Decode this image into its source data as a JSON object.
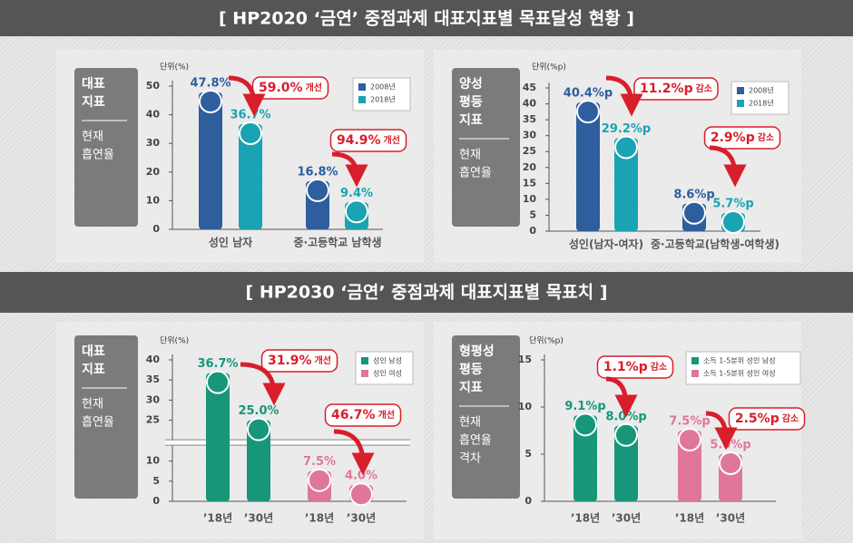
{
  "banners": [
    "[ HP2020 ‘금연’ 중점과제 대표지표별 목표달성 현황 ]",
    "[ HP2030 ‘금연’ 중점과제 대표지표별 목표치 ]"
  ],
  "chart_data": [
    {
      "type": "person-bar",
      "side_title": [
        "대표",
        "지표"
      ],
      "side_label": [
        "현재",
        "흡연율"
      ],
      "unit": "단위(%)",
      "categories": [
        "성인 남자",
        "중·고등학교 남학생"
      ],
      "series": [
        {
          "name": "2008년",
          "color": "#2e5e9e",
          "values": [
            47.8,
            16.8
          ],
          "value_labels": [
            "47.8%",
            "16.8%"
          ]
        },
        {
          "name": "2018년",
          "color": "#1aa3b2",
          "values": [
            36.7,
            9.4
          ],
          "value_labels": [
            "36.7%",
            "9.4%"
          ]
        }
      ],
      "ylim": [
        0,
        50
      ],
      "yticks": [
        0,
        10,
        20,
        30,
        40,
        50
      ],
      "annotations": [
        {
          "text": "59.0%",
          "note": "개선"
        },
        {
          "text": "94.9%",
          "note": "개선"
        }
      ]
    },
    {
      "type": "person-bar",
      "side_title": [
        "양성",
        "평등",
        "지표"
      ],
      "side_label": [
        "현재",
        "흡연율"
      ],
      "unit": "단위(%p)",
      "categories": [
        "성인(남자-여자)",
        "중·고등학교(남학생-여학생)"
      ],
      "series": [
        {
          "name": "2008년",
          "color": "#2e5e9e",
          "values": [
            40.4,
            8.6
          ],
          "value_labels": [
            "40.4%p",
            "8.6%p"
          ]
        },
        {
          "name": "2018년",
          "color": "#1aa3b2",
          "values": [
            29.2,
            5.7
          ],
          "value_labels": [
            "29.2%p",
            "5.7%p"
          ]
        }
      ],
      "ylim": [
        0,
        45
      ],
      "yticks": [
        0,
        5,
        10,
        15,
        20,
        25,
        30,
        35,
        40,
        45
      ],
      "annotations": [
        {
          "text": "11.2%p",
          "note": "감소"
        },
        {
          "text": "2.9%p",
          "note": "감소"
        }
      ]
    },
    {
      "type": "person-bar",
      "side_title": [
        "대표",
        "지표"
      ],
      "side_label": [
        "현재",
        "흡연율"
      ],
      "unit": "단위(%)",
      "categories": [
        "’18년",
        "’30년",
        "’18년",
        "’30년"
      ],
      "series": [
        {
          "name": "성인 남성",
          "color": "#17967a",
          "values": [
            36.7,
            25.0,
            null,
            null
          ],
          "value_labels": [
            "36.7%",
            "25.0%",
            null,
            null
          ]
        },
        {
          "name": "성인 여성",
          "color": "#e0779b",
          "values": [
            null,
            null,
            7.5,
            4.0
          ],
          "value_labels": [
            null,
            null,
            "7.5%",
            "4.0%"
          ]
        }
      ],
      "ylim": [
        0,
        40
      ],
      "ybreak": [
        10,
        25
      ],
      "yticks": [
        0,
        5,
        10,
        25,
        30,
        35,
        40
      ],
      "annotations": [
        {
          "text": "31.9%",
          "note": "개선"
        },
        {
          "text": "46.7%",
          "note": "개선"
        }
      ]
    },
    {
      "type": "person-bar",
      "side_title": [
        "형평성",
        "평등",
        "지표"
      ],
      "side_label": [
        "현재",
        "흡연율",
        "격차"
      ],
      "unit": "단위(%p)",
      "categories": [
        "’18년",
        "’30년",
        "’18년",
        "’30년"
      ],
      "series": [
        {
          "name": "소득 1-5분위 성인 남성",
          "color": "#17967a",
          "values": [
            9.1,
            8.0,
            null,
            null
          ],
          "value_labels": [
            "9.1%p",
            "8.0%p",
            null,
            null
          ]
        },
        {
          "name": "소득 1-5분위 성인 여성",
          "color": "#e0779b",
          "values": [
            null,
            null,
            7.5,
            5.0
          ],
          "value_labels": [
            null,
            null,
            "7.5%p",
            "5.0%p"
          ]
        }
      ],
      "ylim": [
        0,
        15
      ],
      "yticks": [
        0,
        5,
        10,
        15
      ],
      "annotations": [
        {
          "text": "1.1%p",
          "note": "감소"
        },
        {
          "text": "2.5%p",
          "note": "감소"
        }
      ]
    }
  ]
}
